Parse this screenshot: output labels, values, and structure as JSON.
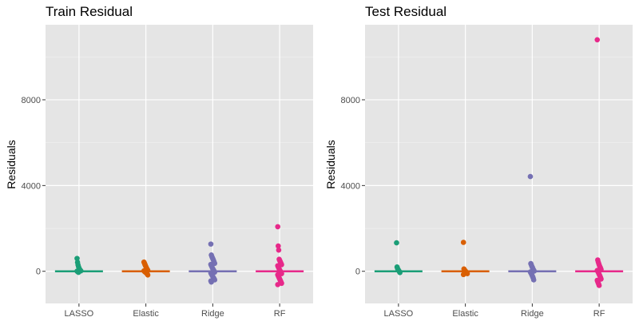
{
  "chart_data": [
    {
      "type": "scatter",
      "title": "Train Residual",
      "xlabel": "",
      "ylabel": "Residuals",
      "ylim": [
        -1500,
        11500
      ],
      "yticks": [
        0,
        4000,
        8000
      ],
      "categories": [
        "LASSO",
        "Elastic",
        "Ridge",
        "RF"
      ],
      "colors": [
        "#1b9e77",
        "#d95f02",
        "#7570b3",
        "#e7298a"
      ],
      "grid": true,
      "legend": "none",
      "series": [
        {
          "category": "LASSO",
          "values": [
            600,
            420,
            300,
            220,
            160,
            110,
            70,
            40,
            20,
            5,
            -10,
            -30,
            -50
          ]
        },
        {
          "category": "Elastic",
          "values": [
            430,
            380,
            320,
            270,
            220,
            170,
            120,
            80,
            50,
            20,
            0,
            -20,
            -40,
            -60,
            -80,
            -100,
            -130,
            -170
          ]
        },
        {
          "category": "Ridge",
          "values": [
            1270,
            760,
            700,
            640,
            590,
            540,
            480,
            420,
            370,
            320,
            270,
            220,
            170,
            120,
            80,
            40,
            0,
            -40,
            -80,
            -120,
            -160,
            -200,
            -240,
            -280,
            -320,
            -360,
            -400,
            -450,
            -500
          ]
        },
        {
          "category": "RF",
          "values": [
            2080,
            1180,
            990,
            560,
            510,
            460,
            410,
            360,
            310,
            260,
            210,
            160,
            110,
            60,
            20,
            -20,
            -60,
            -110,
            -160,
            -210,
            -260,
            -310,
            -360,
            -410,
            -460,
            -510,
            -560,
            -620
          ]
        }
      ]
    },
    {
      "type": "scatter",
      "title": "Test Residual",
      "xlabel": "",
      "ylabel": "Residuals",
      "ylim": [
        -1500,
        11500
      ],
      "yticks": [
        0,
        4000,
        8000
      ],
      "categories": [
        "LASSO",
        "Elastic",
        "Ridge",
        "RF"
      ],
      "colors": [
        "#1b9e77",
        "#d95f02",
        "#7570b3",
        "#e7298a"
      ],
      "grid": true,
      "legend": "none",
      "series": [
        {
          "category": "LASSO",
          "values": [
            1330,
            200,
            140,
            90,
            50,
            20,
            -20,
            -60
          ]
        },
        {
          "category": "Elastic",
          "values": [
            1350,
            110,
            70,
            40,
            10,
            -20,
            -50,
            -80,
            -110,
            -150
          ]
        },
        {
          "category": "Ridge",
          "values": [
            4420,
            360,
            300,
            240,
            190,
            140,
            90,
            50,
            10,
            -30,
            -70,
            -110,
            -160,
            -210,
            -260,
            -320,
            -400
          ]
        },
        {
          "category": "RF",
          "values": [
            10800,
            530,
            440,
            370,
            300,
            240,
            190,
            140,
            90,
            40,
            0,
            -40,
            -90,
            -140,
            -190,
            -240,
            -300,
            -360,
            -420,
            -480,
            -540,
            -600,
            -660
          ]
        }
      ]
    }
  ]
}
